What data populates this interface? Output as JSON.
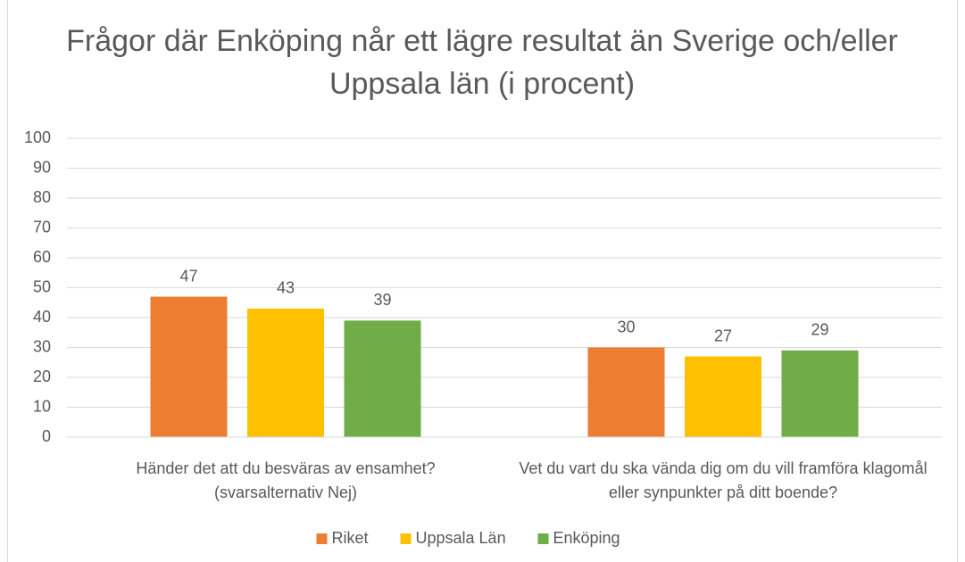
{
  "chart_data": {
    "type": "bar",
    "title": "Frågor där Enköping når ett lägre resultat än Sverige och/eller Uppsala län (i procent)",
    "categories": [
      "Händer det att du besväras av ensamhet? (svarsalternativ Nej)",
      "Vet du vart du ska vända dig om du vill framföra klagomål eller synpunkter på ditt boende?"
    ],
    "series": [
      {
        "name": "Riket",
        "color": "#ED7D31",
        "values": [
          47,
          30
        ]
      },
      {
        "name": "Uppsala Län",
        "color": "#FFC000",
        "values": [
          43,
          27
        ]
      },
      {
        "name": "Enköping",
        "color": "#70AD47",
        "values": [
          39,
          29
        ]
      }
    ],
    "ylim": [
      0,
      100
    ],
    "yticks": [
      0,
      10,
      20,
      30,
      40,
      50,
      60,
      70,
      80,
      90,
      100
    ],
    "grid": true,
    "legend": "bottom"
  }
}
